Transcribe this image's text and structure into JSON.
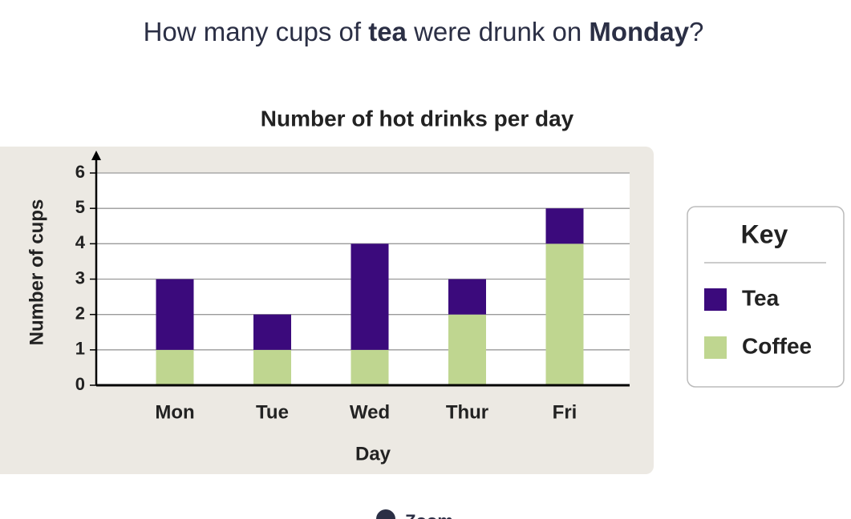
{
  "question": [
    {
      "text": "How many cups of ",
      "bold": false
    },
    {
      "text": "tea",
      "bold": true
    },
    {
      "text": " were drunk on ",
      "bold": false
    },
    {
      "text": "Monday",
      "bold": true
    },
    {
      "text": "?",
      "bold": false
    }
  ],
  "chart_data": {
    "type": "bar",
    "stacked": true,
    "title": "Number of hot drinks per day",
    "categories": [
      "Mon",
      "Tue",
      "Wed",
      "Thur",
      "Fri"
    ],
    "series": [
      {
        "name": "Coffee",
        "color": "#bfd690",
        "values": [
          1,
          1,
          1,
          2,
          4
        ]
      },
      {
        "name": "Tea",
        "color": "#3b0a7c",
        "values": [
          2,
          1,
          3,
          1,
          1
        ]
      }
    ],
    "xlabel": "Day",
    "ylabel": "Number of cups",
    "ylim": [
      0,
      6
    ],
    "yticks": [
      0,
      1,
      2,
      3,
      4,
      5,
      6
    ],
    "grid": true,
    "legend_title": "Key",
    "legend": "right"
  },
  "zoom": "Zoom"
}
